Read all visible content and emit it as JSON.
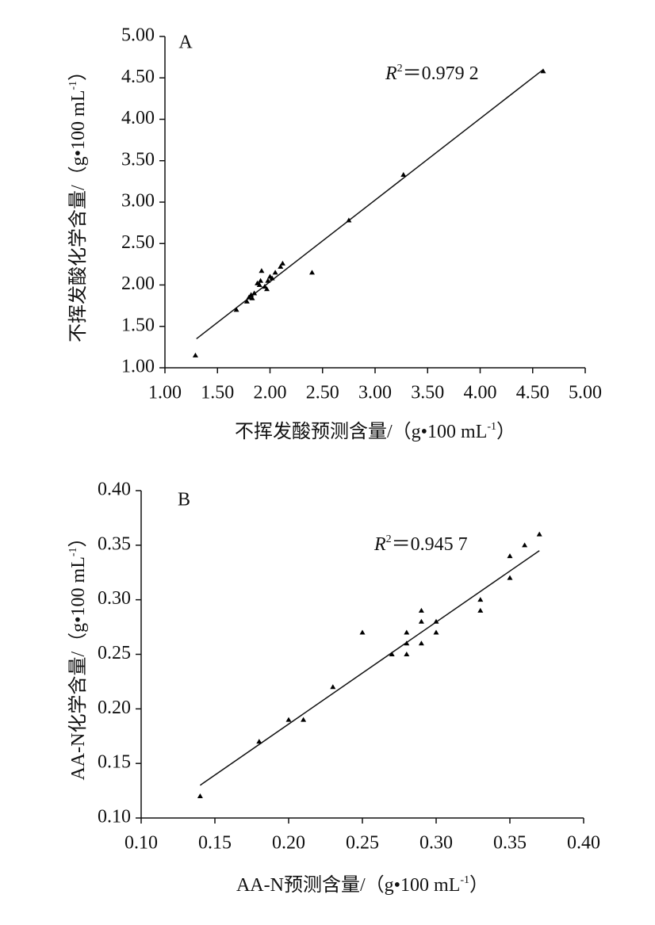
{
  "chart_data": [
    {
      "type": "scatter",
      "panel": "A",
      "annotation": {
        "variable": "R",
        "exponent": "2",
        "text": "＝0.979 2"
      },
      "x_label": [
        "不挥发酸预测含量/（g•100 mL",
        "-1",
        "）"
      ],
      "y_label": [
        "不挥发酸化学含量/（g•100 mL",
        "-1",
        "）"
      ],
      "xlim": [
        1,
        5
      ],
      "ylim": [
        1,
        5
      ],
      "xticks": [
        {
          "value": 1,
          "label": "1.00"
        },
        {
          "value": 1.5,
          "label": "1.50"
        },
        {
          "value": 2,
          "label": "2.00"
        },
        {
          "value": 2.5,
          "label": "2.50"
        },
        {
          "value": 3,
          "label": "3.00"
        },
        {
          "value": 3.5,
          "label": "3.50"
        },
        {
          "value": 4,
          "label": "4.00"
        },
        {
          "value": 4.5,
          "label": "4.50"
        },
        {
          "value": 5,
          "label": "5.00"
        }
      ],
      "yticks": [
        {
          "value": 1,
          "label": "1.00"
        },
        {
          "value": 1.5,
          "label": "1.50"
        },
        {
          "value": 2,
          "label": "2.00"
        },
        {
          "value": 2.5,
          "label": "2.50"
        },
        {
          "value": 3,
          "label": "3.00"
        },
        {
          "value": 3.5,
          "label": "3.50"
        },
        {
          "value": 4,
          "label": "4.00"
        },
        {
          "value": 4.5,
          "label": "4.50"
        },
        {
          "value": 5,
          "label": "5.00"
        }
      ],
      "color": "#000000",
      "x": [
        1.29,
        1.68,
        1.78,
        1.8,
        1.82,
        1.85,
        1.83,
        1.88,
        1.9,
        1.91,
        1.92,
        1.95,
        1.97,
        1.98,
        2.0,
        2.02,
        2.05,
        2.1,
        2.12,
        2.4,
        2.75,
        3.27,
        4.6
      ],
      "values": [
        1.15,
        1.7,
        1.8,
        1.85,
        1.88,
        1.9,
        1.84,
        2.02,
        2.0,
        2.05,
        2.17,
        1.98,
        1.95,
        2.05,
        2.1,
        2.08,
        2.15,
        2.22,
        2.26,
        2.15,
        2.78,
        3.33,
        4.58
      ],
      "trend": {
        "x": [
          1.3,
          4.6
        ],
        "values": [
          1.35,
          4.6
        ]
      }
    },
    {
      "type": "scatter",
      "panel": "B",
      "annotation": {
        "variable": "R",
        "exponent": "2",
        "text": "＝0.945 7"
      },
      "x_label": [
        "AA-N预测含量/（g•100 mL",
        "-1",
        "）"
      ],
      "y_label": [
        "AA-N化学含量/（g•100 mL",
        "-1",
        "）"
      ],
      "xlim": [
        0.1,
        0.4
      ],
      "ylim": [
        0.1,
        0.4
      ],
      "xticks": [
        {
          "value": 0.1,
          "label": "0.10"
        },
        {
          "value": 0.15,
          "label": "0.15"
        },
        {
          "value": 0.2,
          "label": "0.20"
        },
        {
          "value": 0.25,
          "label": "0.25"
        },
        {
          "value": 0.3,
          "label": "0.30"
        },
        {
          "value": 0.35,
          "label": "0.35"
        },
        {
          "value": 0.4,
          "label": "0.40"
        }
      ],
      "yticks": [
        {
          "value": 0.1,
          "label": "0.10"
        },
        {
          "value": 0.15,
          "label": "0.15"
        },
        {
          "value": 0.2,
          "label": "0.20"
        },
        {
          "value": 0.25,
          "label": "0.25"
        },
        {
          "value": 0.3,
          "label": "0.30"
        },
        {
          "value": 0.35,
          "label": "0.35"
        },
        {
          "value": 0.4,
          "label": "0.40"
        }
      ],
      "color": "#000000",
      "x": [
        0.14,
        0.18,
        0.2,
        0.21,
        0.23,
        0.25,
        0.27,
        0.28,
        0.28,
        0.28,
        0.29,
        0.29,
        0.29,
        0.3,
        0.3,
        0.33,
        0.33,
        0.35,
        0.35,
        0.36,
        0.37
      ],
      "values": [
        0.12,
        0.17,
        0.19,
        0.19,
        0.22,
        0.27,
        0.25,
        0.25,
        0.26,
        0.27,
        0.26,
        0.28,
        0.29,
        0.27,
        0.28,
        0.29,
        0.3,
        0.32,
        0.34,
        0.35,
        0.36
      ],
      "trend": {
        "x": [
          0.14,
          0.37
        ],
        "values": [
          0.13,
          0.345
        ]
      }
    }
  ]
}
